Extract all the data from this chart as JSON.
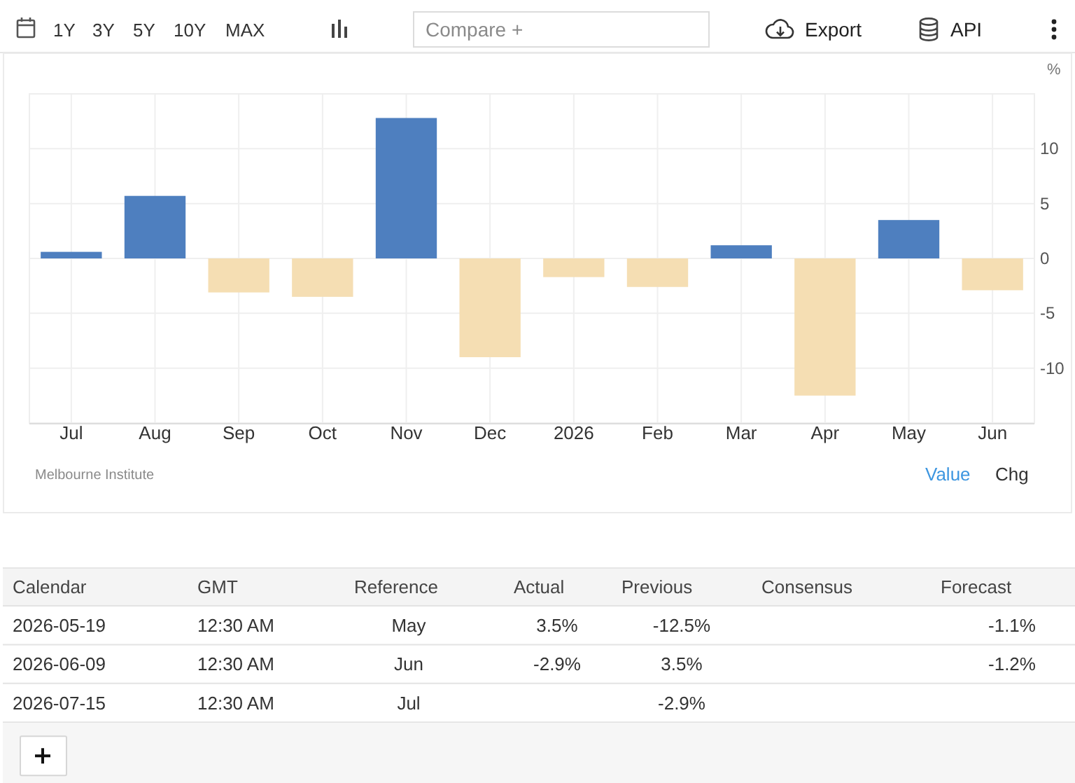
{
  "chart_data": [
    {
      "type": "other",
      "annotations": [
        "1Y",
        "3Y",
        "5Y",
        "10Y",
        "MAX",
        "Compare +",
        "Export",
        "API"
      ]
    },
    {
      "type": "bar",
      "categories": [
        "Jul",
        "Aug",
        "Sep",
        "Oct",
        "Nov",
        "Dec",
        "2026",
        "Feb",
        "Mar",
        "Apr",
        "May",
        "Jun"
      ],
      "values": [
        0.6,
        5.7,
        -3.1,
        -3.5,
        12.8,
        -9.0,
        -1.7,
        -2.6,
        1.2,
        -12.5,
        3.5,
        -2.9
      ],
      "colors": [
        "#4e7fbf",
        "#4e7fbf",
        "#f5deb3",
        "#f5deb3",
        "#4e7fbf",
        "#f5deb3",
        "#f5deb3",
        "#f5deb3",
        "#4e7fbf",
        "#f5deb3",
        "#4e7fbf",
        "#f5deb3"
      ],
      "ylabel": "%",
      "ylim": [
        -15,
        15
      ],
      "yticks": [
        -10,
        -5,
        0,
        5,
        10
      ],
      "grid": true,
      "annotations": [
        "Melbourne Institute",
        "Value",
        "Chg"
      ]
    },
    {
      "type": "other",
      "categories": [
        "Calendar",
        "GMT",
        "Reference",
        "Actual",
        "Previous",
        "Consensus",
        "Forecast"
      ],
      "cell_labels": [
        [
          "2026-05-19",
          "12:30 AM",
          "May",
          "3.5%",
          "-12.5%",
          null,
          "-1.1%"
        ],
        [
          "2026-06-09",
          "12:30 AM",
          "Jun",
          "-2.9%",
          "3.5%",
          null,
          "-1.2%"
        ],
        [
          "2026-07-15",
          "12:30 AM",
          "Jul",
          null,
          "-2.9%",
          null,
          null
        ]
      ]
    }
  ]
}
